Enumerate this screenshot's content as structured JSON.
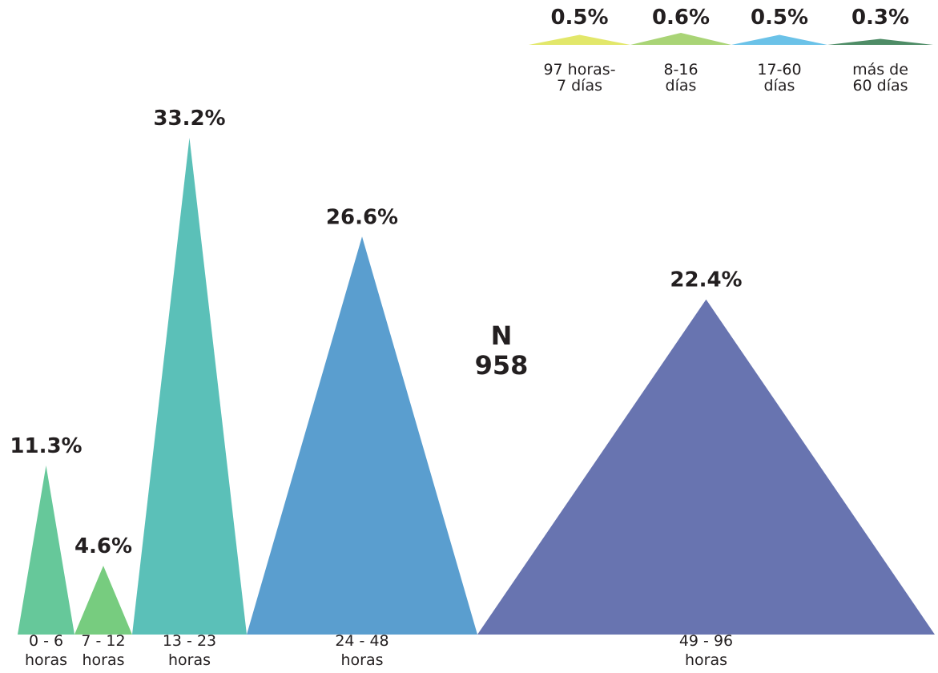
{
  "chart_data": {
    "type": "bar",
    "categories": [
      [
        "0 - 6",
        "horas"
      ],
      [
        "7 - 12",
        "horas"
      ],
      [
        "13 - 23",
        "horas"
      ],
      [
        "24 - 48",
        "horas"
      ],
      [
        "49 - 96",
        "horas"
      ],
      [
        "97 horas-",
        "7 días"
      ],
      [
        "8-16",
        "días"
      ],
      [
        "17-60",
        "días"
      ],
      [
        "más de",
        "60 días"
      ]
    ],
    "values": [
      11.3,
      4.6,
      33.2,
      26.6,
      22.4,
      0.5,
      0.6,
      0.5,
      0.3
    ],
    "value_labels": [
      "11.3%",
      "4.6%",
      "33.2%",
      "26.6%",
      "22.4%",
      "0.5%",
      "0.6%",
      "0.5%",
      "0.3%"
    ],
    "colors": [
      "#66c89a",
      "#77cc7f",
      "#5bc0b8",
      "#5a9ecf",
      "#6874b0",
      "#e2e76a",
      "#a9d476",
      "#6bc2e8",
      "#4e8c66"
    ],
    "ylim": [
      0,
      33.2
    ],
    "n_title": "N",
    "n_value": "958",
    "grid": false
  }
}
